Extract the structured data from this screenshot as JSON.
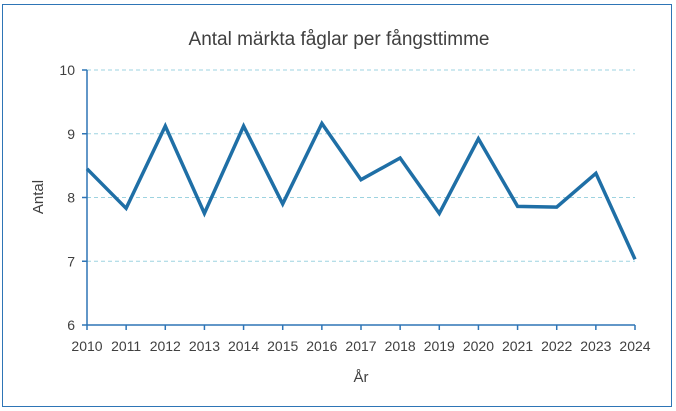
{
  "colors": {
    "frame": "#2E75B6",
    "line": "#1F6FA6",
    "axis": "#2E75B6",
    "grid": "#9DD3E0",
    "text": "#404040"
  },
  "chart_data": {
    "type": "line",
    "title": "Antal märkta fåglar per fångsttimme",
    "xlabel": "År",
    "ylabel": "Antal",
    "categories": [
      "2010",
      "2011",
      "2012",
      "2013",
      "2014",
      "2015",
      "2016",
      "2017",
      "2018",
      "2019",
      "2020",
      "2021",
      "2022",
      "2023",
      "2024"
    ],
    "series": [
      {
        "values": [
          8.45,
          7.83,
          9.12,
          7.75,
          9.12,
          7.9,
          9.16,
          8.28,
          8.62,
          7.75,
          8.92,
          7.86,
          7.85,
          8.38,
          7.03
        ]
      }
    ],
    "ylim": [
      6,
      10
    ],
    "yticks": [
      6,
      7,
      8,
      9,
      10
    ],
    "grid": "horizontal dashed",
    "legend": "none"
  }
}
